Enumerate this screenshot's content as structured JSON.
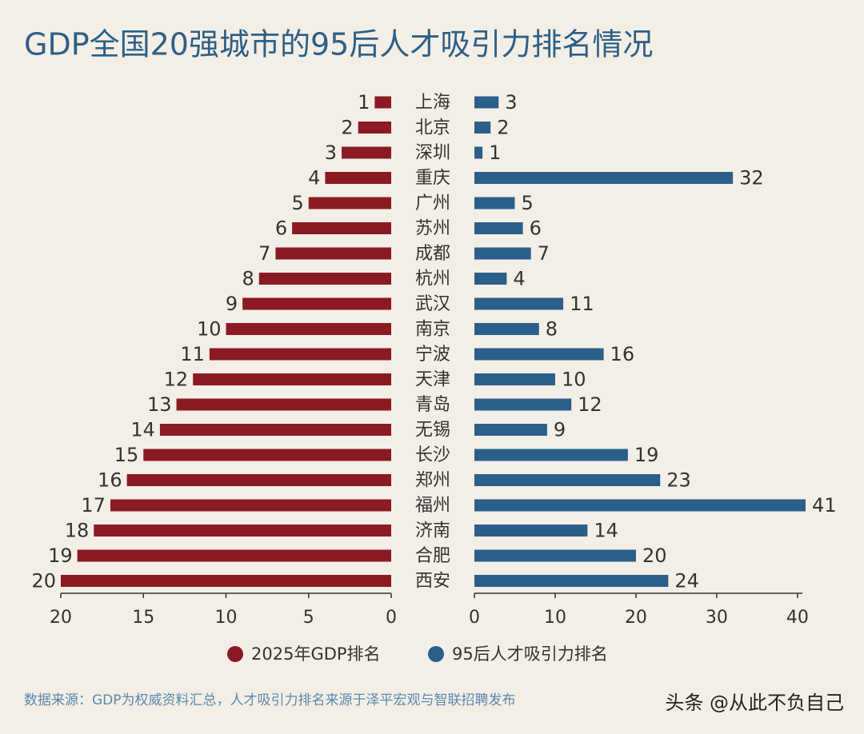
{
  "chart_data": {
    "type": "butterfly",
    "title": "GDP全国20强城市的95后人才吸引力排名情况",
    "categories": [
      "上海",
      "北京",
      "深圳",
      "重庆",
      "广州",
      "苏州",
      "成都",
      "杭州",
      "武汉",
      "南京",
      "宁波",
      "天津",
      "青岛",
      "无锡",
      "长沙",
      "郑州",
      "福州",
      "济南",
      "合肥",
      "西安"
    ],
    "series": [
      {
        "name": "2025年GDP排名",
        "color": "#8b1a24",
        "side": "left",
        "values": [
          1,
          2,
          3,
          4,
          5,
          6,
          7,
          8,
          9,
          10,
          11,
          12,
          13,
          14,
          15,
          16,
          17,
          18,
          19,
          20
        ],
        "xlim": [
          20,
          0
        ],
        "xticks": [
          20,
          15,
          10,
          5,
          0
        ]
      },
      {
        "name": "95后人才吸引力排名",
        "color": "#2b5f8a",
        "side": "right",
        "values": [
          3,
          2,
          1,
          32,
          5,
          6,
          7,
          4,
          11,
          8,
          16,
          10,
          12,
          9,
          19,
          23,
          41,
          14,
          20,
          24
        ],
        "xlim": [
          0,
          41
        ],
        "xticks": [
          0,
          10,
          20,
          30,
          40
        ]
      }
    ],
    "source": "数据来源：GDP为权威资料汇总，人才吸引力排名来源于泽平宏观与智联招聘发布",
    "watermark": "头条 @从此不负自己"
  }
}
